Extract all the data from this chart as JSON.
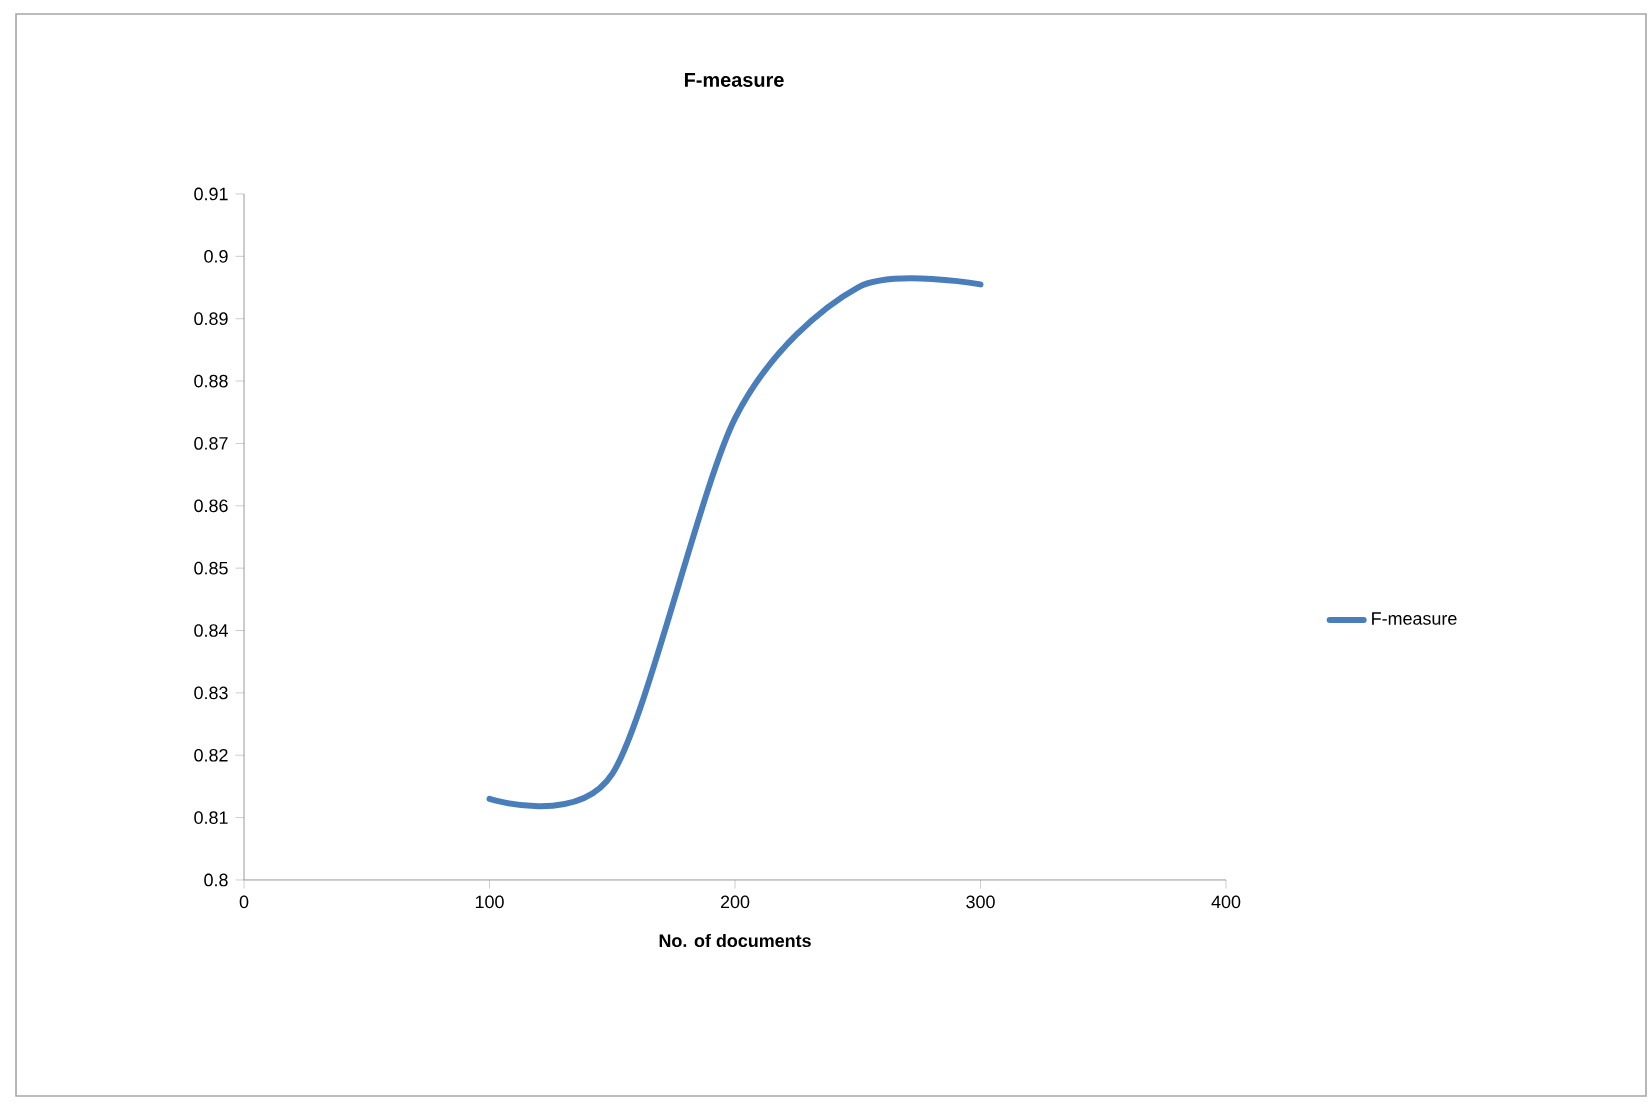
{
  "chart_data": {
    "type": "line",
    "title": "F-measure",
    "xlabel": "No. of documents",
    "x": [
      100,
      150,
      200,
      250,
      300
    ],
    "series": [
      {
        "name": "F-measure",
        "color": "#4a7ebb",
        "values": [
          0.813,
          0.817,
          0.874,
          0.895,
          0.8955
        ]
      }
    ],
    "xlim": [
      0,
      400
    ],
    "xticks": [
      0,
      100,
      200,
      300,
      400
    ],
    "ylim": [
      0.8,
      0.91
    ],
    "yticks": [
      0.8,
      0.81,
      0.82,
      0.83,
      0.84,
      0.85,
      0.86,
      0.87,
      0.88,
      0.89,
      0.9,
      0.91
    ],
    "legend": "right",
    "grid": false,
    "marker": "none",
    "line_style": "solid"
  }
}
